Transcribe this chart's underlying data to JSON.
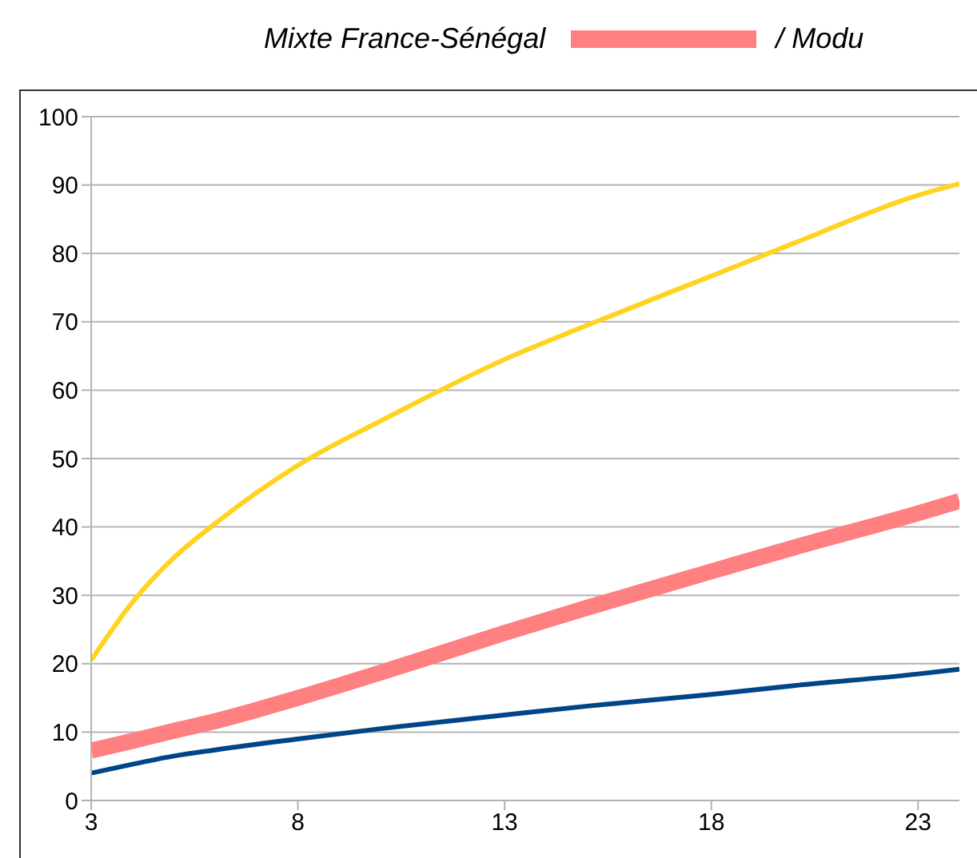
{
  "chart_data": {
    "type": "line",
    "annotations": [
      "Mixte France-Sénégal"
    ],
    "x": [
      3,
      4,
      5,
      6,
      8,
      10,
      13,
      15,
      18,
      20,
      23,
      24
    ],
    "series": [
      {
        "color": "#ffd320",
        "values": [
          20.5,
          29,
          35.5,
          40.5,
          49,
          55.5,
          64.5,
          69.5,
          76.7,
          81.5,
          88.5,
          90.2
        ]
      },
      {
        "name": "/ Modu",
        "color": "#ff8080",
        "values": [
          7.3,
          8.7,
          10.2,
          11.6,
          15,
          18.7,
          24.5,
          28.2,
          33.5,
          37,
          42,
          43.8
        ]
      },
      {
        "color": "#004586",
        "values": [
          4,
          5.3,
          6.5,
          7.4,
          9,
          10.5,
          12.5,
          13.8,
          15.5,
          16.8,
          18.5,
          19.2
        ]
      }
    ],
    "xlim": [
      3,
      24
    ],
    "xticks": [
      3,
      8,
      13,
      18,
      23
    ],
    "ylim": [
      0,
      100
    ],
    "yticks": [
      0,
      10,
      20,
      30,
      40,
      50,
      60,
      70,
      80,
      90,
      100
    ],
    "grid": "y",
    "legend": "top",
    "marker": "none",
    "line_style": "solid"
  }
}
